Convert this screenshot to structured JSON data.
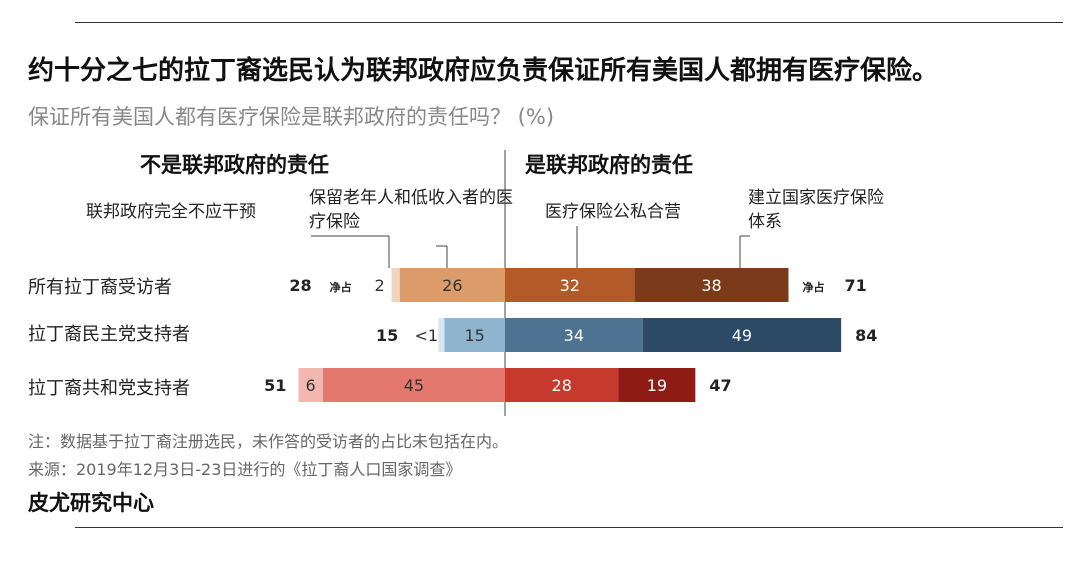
{
  "title": "约十分之七的拉丁裔选民认为联邦政府应负责保证所有美国人都拥有医疗保险。",
  "subtitle": "保证所有美国人都有医疗保险是联邦政府的责任吗？ (%)",
  "left_header": "不是联邦政府的责任",
  "right_header": "是联邦政府的责任",
  "categories": {
    "no_role": "联邦政府完全不应干预",
    "medicare": "保留老年人和低收入者的医疗保险",
    "mix": "医疗保险公私合营",
    "single_payer": "建立国家医疗保险体系"
  },
  "net_label": "净占",
  "note": "注：数据基于拉丁裔注册选民，未作答的受访者的占比未包括在内。",
  "date_source": "来源：2019年12月3日-23日进行的《拉丁裔人口国家调查》",
  "source": "皮尤研究中心",
  "chart_data": {
    "type": "bar",
    "stacked": true,
    "diverging": true,
    "unit": "%",
    "rows": [
      {
        "label": "所有拉丁裔受访者",
        "no_role": 2,
        "no_role_label": "2",
        "medicare": 26,
        "mix": 32,
        "single_payer": 38,
        "net_no": 28,
        "net_yes": 71,
        "colors": {
          "no_role": "#f3d5bd",
          "medicare": "#dc9b6b",
          "mix": "#b35a28",
          "single_payer": "#7b3b1a"
        }
      },
      {
        "label": "拉丁裔民主党支持者",
        "no_role": 0.5,
        "no_role_label": "<1",
        "medicare": 15,
        "mix": 34,
        "single_payer": 49,
        "net_no": 15,
        "net_yes": 84,
        "colors": {
          "no_role": "#d8e6f0",
          "medicare": "#8fb4cf",
          "mix": "#4e7292",
          "single_payer": "#2c4a66"
        }
      },
      {
        "label": "拉丁裔共和党支持者",
        "no_role": 6,
        "no_role_label": "6",
        "medicare": 45,
        "mix": 28,
        "single_payer": 19,
        "net_no": 51,
        "net_yes": 47,
        "colors": {
          "no_role": "#f2b8b0",
          "medicare": "#e4776e",
          "mix": "#c53a2c",
          "single_payer": "#8f1c14"
        }
      }
    ]
  }
}
